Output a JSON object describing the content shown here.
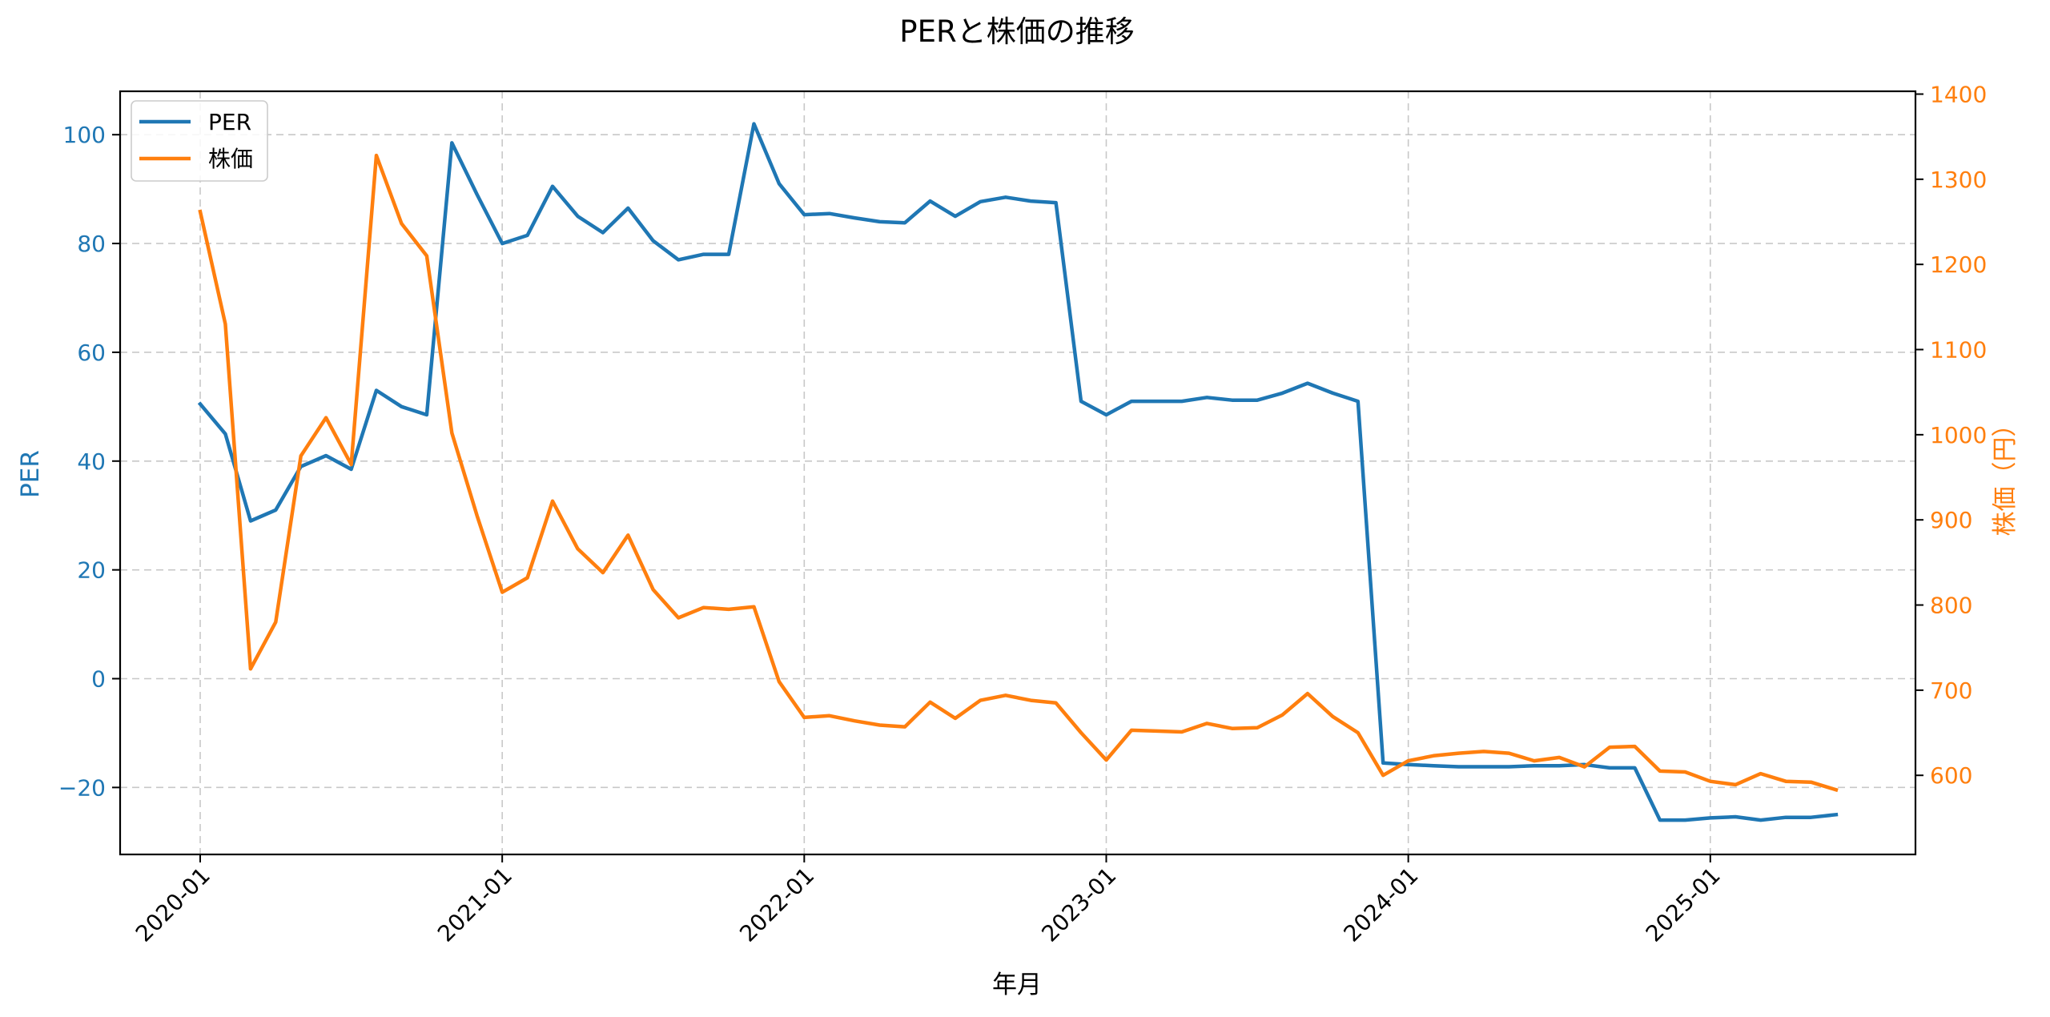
{
  "chart_data": {
    "type": "line",
    "title": "PERと株価の推移",
    "xlabel": "年月",
    "ylabel": "PER",
    "ylabel_right": "株価（円）",
    "x_ticks": [
      "2020-01",
      "2021-01",
      "2022-01",
      "2023-01",
      "2024-01",
      "2025-01"
    ],
    "y_ticks_left": [
      -20,
      0,
      20,
      40,
      60,
      80,
      100
    ],
    "y_ticks_right": [
      600,
      700,
      800,
      900,
      1000,
      1100,
      1200,
      1300,
      1400
    ],
    "ylim": [
      -32,
      108
    ],
    "ylim_right": [
      510,
      1402
    ],
    "grid": true,
    "legend_position": "upper left",
    "x": [
      "2020-01",
      "2020-02",
      "2020-03",
      "2020-04",
      "2020-05",
      "2020-06",
      "2020-07",
      "2020-08",
      "2020-09",
      "2020-10",
      "2020-11",
      "2020-12",
      "2021-01",
      "2021-02",
      "2021-03",
      "2021-04",
      "2021-05",
      "2021-06",
      "2021-07",
      "2021-08",
      "2021-09",
      "2021-10",
      "2021-11",
      "2021-12",
      "2022-01",
      "2022-02",
      "2022-03",
      "2022-04",
      "2022-05",
      "2022-06",
      "2022-07",
      "2022-08",
      "2022-09",
      "2022-10",
      "2022-11",
      "2022-12",
      "2023-01",
      "2023-02",
      "2023-03",
      "2023-04",
      "2023-05",
      "2023-06",
      "2023-07",
      "2023-08",
      "2023-09",
      "2023-10",
      "2023-11",
      "2023-12",
      "2024-01",
      "2024-02",
      "2024-03",
      "2024-04",
      "2024-05",
      "2024-06",
      "2024-07",
      "2024-08",
      "2024-09",
      "2024-10",
      "2024-11",
      "2024-12",
      "2025-01",
      "2025-02",
      "2025-03",
      "2025-04",
      "2025-05",
      "2025-06"
    ],
    "series": [
      {
        "name": "PER",
        "axis": "left",
        "color": "#1f77b4",
        "values": [
          50.5,
          45,
          29,
          31,
          39,
          41,
          38.5,
          53,
          50,
          48.5,
          98.5,
          89,
          80,
          81.5,
          90.5,
          85,
          82,
          86.5,
          80.5,
          77,
          78,
          78,
          102,
          91,
          85.3,
          85.5,
          84.7,
          84,
          83.8,
          87.8,
          85,
          87.7,
          88.5,
          87.8,
          87.5,
          51,
          48.5,
          51,
          51,
          51,
          51.7,
          51.2,
          51.2,
          52.5,
          54.3,
          52.5,
          51,
          -15.5,
          -15.8,
          -16,
          -16.2,
          -16.2,
          -16.2,
          -16,
          -16,
          -15.8,
          -16.4,
          -16.4,
          -26,
          -26,
          -25.6,
          -25.4,
          -26,
          -25.5,
          -25.5,
          -25
        ]
      },
      {
        "name": "株価",
        "axis": "right",
        "color": "#ff7f0e",
        "values": [
          1262,
          1130,
          725,
          780,
          975,
          1020,
          965,
          1328,
          1248,
          1210,
          1002,
          905,
          815,
          832,
          922,
          866,
          838,
          882,
          818,
          785,
          797,
          795,
          798,
          710,
          668,
          670,
          664,
          659,
          657,
          686,
          667,
          688,
          694,
          688,
          685,
          650,
          618,
          653,
          652,
          651,
          661,
          655,
          656,
          671,
          696,
          669,
          650,
          600,
          617,
          623,
          626,
          628,
          626,
          617,
          621,
          610,
          633,
          634,
          605,
          604,
          593,
          589,
          602,
          593,
          592,
          583
        ]
      }
    ]
  },
  "legend": {
    "items": [
      {
        "label": "PER",
        "color": "#1f77b4"
      },
      {
        "label": "株価",
        "color": "#ff7f0e"
      }
    ]
  }
}
